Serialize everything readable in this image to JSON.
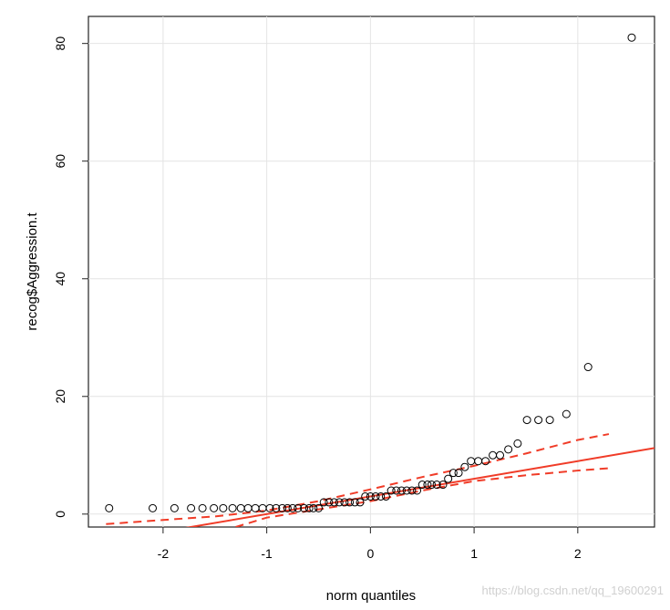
{
  "chart_data": {
    "type": "qqplot",
    "xlabel": "norm quantiles",
    "ylabel": "recog$Aggression.t",
    "watermark": "https://blog.csdn.net/qq_19600291",
    "xlim": [
      -2.72,
      2.74
    ],
    "ylim": [
      -2.2,
      84.6
    ],
    "xticks": [
      -2,
      -1,
      0,
      1,
      2
    ],
    "yticks": [
      0,
      20,
      40,
      60,
      80
    ],
    "grid": true,
    "series": [
      {
        "color": "#000000",
        "x": [
          -2.52,
          -2.1,
          -1.89,
          -1.73,
          -1.62,
          -1.51,
          -1.42,
          -1.33,
          -1.25,
          -1.18,
          -1.11,
          -1.04,
          -0.97,
          -0.91,
          -0.85,
          -0.8,
          -0.75,
          -0.7,
          -0.64,
          -0.59,
          -0.55,
          -0.5,
          -0.45,
          -0.4,
          -0.35,
          -0.3,
          -0.25,
          -0.2,
          -0.15,
          -0.1,
          -0.05,
          0,
          0.05,
          0.1,
          0.15,
          0.2,
          0.25,
          0.3,
          0.35,
          0.4,
          0.45,
          0.5,
          0.55,
          0.59,
          0.64,
          0.7,
          0.75,
          0.8,
          0.85,
          0.91,
          0.97,
          1.04,
          1.11,
          1.18,
          1.25,
          1.33,
          1.42,
          1.51,
          1.62,
          1.73,
          1.89,
          2.1,
          2.52
        ],
        "values": [
          1,
          1,
          1,
          1,
          1,
          1,
          1,
          1,
          1,
          1,
          1,
          1,
          1,
          1,
          1,
          1,
          1,
          1,
          1,
          1,
          1,
          1,
          2,
          2,
          2,
          2,
          2,
          2,
          2,
          2,
          3,
          3,
          3,
          3,
          3,
          4,
          4,
          4,
          4,
          4,
          4,
          5,
          5,
          5,
          5,
          5,
          6,
          7,
          7,
          8,
          9,
          9,
          9,
          10,
          10,
          11,
          12,
          16,
          16,
          16,
          17,
          25,
          81
        ]
      }
    ],
    "fit": {
      "color": "#f03c28",
      "intercept": 3,
      "slope": 3
    },
    "bands": [
      {
        "x": [
          -2.55,
          -2,
          -1.5,
          -1,
          -0.5,
          0,
          0.5,
          1,
          1.5,
          2,
          2.3
        ],
        "values": [
          -1.7,
          -1.0,
          -0.4,
          0.6,
          2.2,
          4.2,
          6.3,
          8.2,
          10.3,
          12.6,
          13.6
        ]
      },
      {
        "x": [
          -1.3,
          -1,
          -0.5,
          0,
          0.5,
          1,
          1.5,
          2,
          2.3
        ],
        "values": [
          -2.2,
          -0.6,
          0.8,
          2.2,
          4.0,
          5.6,
          6.6,
          7.4,
          7.8
        ]
      }
    ]
  }
}
